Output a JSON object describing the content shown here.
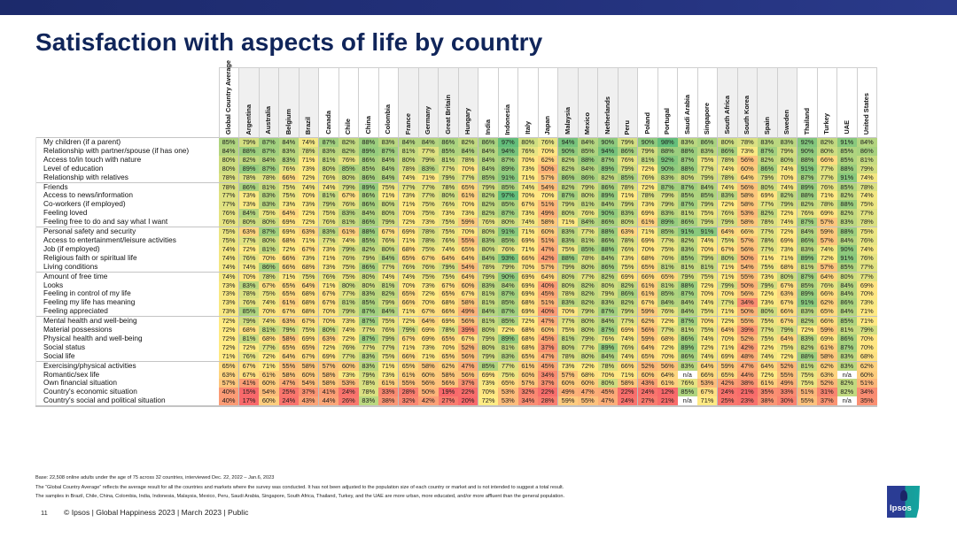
{
  "page": {
    "title": "Satisfaction with aspects of life by country",
    "footnote_base": "Base: 22,508 online adults under the age of 75 across 32 countries, interviewed Dec. 22, 2022 – Jan.6, 2023",
    "footnote_average": "The “Global Country Average” reflects the average result for all the countries and markets where the survey was conducted. It has not been adjusted to the population size of each country or market and is not intended to suggest a total result.",
    "footnote_samples": "The samples in Brazil, Chile, China, Colombia, India, Indonesia, Malaysia, Mexico, Peru, Saudi Arabia, Singapore, South Africa, Thailand, Turkey, and the UAE are more urban, more educated, and/or more affluent than the general population.",
    "page_number": "11",
    "footer": "© Ipsos | Global Happiness 2023 | March 2023 | Public",
    "logo_text": "Ipsos"
  },
  "chart_data": {
    "type": "heatmap",
    "title": "Satisfaction with aspects of life by country",
    "value_unit": "%",
    "color_scale": {
      "low": "#f8696b",
      "mid": "#ffeb84",
      "high": "#63be7b"
    },
    "columns": [
      "Global Country Average",
      "Argentina",
      "Australia",
      "Belgium",
      "Brazil",
      "Canada",
      "Chile",
      "China",
      "Colombia",
      "France",
      "Germany",
      "Great Britain",
      "Hungary",
      "India",
      "Indonesia",
      "Italy",
      "Japan",
      "Malaysia",
      "Mexico",
      "Netherlands",
      "Peru",
      "Poland",
      "Portugal",
      "Saudi Arabia",
      "Singapore",
      "South Africa",
      "South Korea",
      "Spain",
      "Sweden",
      "Thailand",
      "Turkey",
      "UAE",
      "United States"
    ],
    "column_group_starts": [
      1,
      5,
      9,
      13,
      17,
      21,
      25,
      29
    ],
    "row_group_starts": [
      5,
      10,
      15,
      20,
      25
    ],
    "rows": [
      {
        "label": "My children (if a parent)",
        "values": [
          85,
          79,
          87,
          84,
          74,
          87,
          82,
          88,
          83,
          84,
          84,
          86,
          82,
          86,
          97,
          80,
          76,
          94,
          84,
          90,
          79,
          90,
          98,
          83,
          86,
          80,
          78,
          83,
          83,
          92,
          82,
          91,
          84
        ]
      },
      {
        "label": "Relationship with partner/spouse (if has one)",
        "values": [
          84,
          88,
          87,
          83,
          78,
          83,
          82,
          89,
          87,
          81,
          77,
          85,
          84,
          84,
          94,
          76,
          70,
          90,
          85,
          94,
          86,
          79,
          88,
          88,
          83,
          86,
          73,
          87,
          79,
          90,
          80,
          85,
          86
        ]
      },
      {
        "label": "Access to/in touch with nature",
        "values": [
          80,
          82,
          84,
          83,
          71,
          81,
          76,
          86,
          84,
          80,
          79,
          81,
          78,
          84,
          87,
          70,
          62,
          82,
          88,
          87,
          76,
          81,
          92,
          87,
          75,
          78,
          56,
          82,
          80,
          88,
          66,
          85,
          81
        ]
      },
      {
        "label": "Level of education",
        "values": [
          80,
          89,
          87,
          76,
          73,
          80,
          85,
          85,
          84,
          78,
          83,
          77,
          70,
          84,
          89,
          73,
          50,
          82,
          84,
          89,
          79,
          72,
          90,
          88,
          77,
          74,
          60,
          86,
          74,
          91,
          77,
          88,
          79
        ]
      },
      {
        "label": "Relationship with relatives",
        "values": [
          78,
          78,
          78,
          66,
          72,
          76,
          80,
          86,
          84,
          74,
          71,
          79,
          77,
          85,
          91,
          71,
          57,
          86,
          86,
          82,
          85,
          76,
          83,
          80,
          79,
          78,
          64,
          79,
          70,
          87,
          77,
          91,
          74
        ]
      },
      {
        "label": "Friends",
        "values": [
          78,
          86,
          81,
          75,
          74,
          74,
          79,
          89,
          75,
          77,
          77,
          78,
          65,
          79,
          85,
          74,
          54,
          82,
          79,
          86,
          78,
          72,
          87,
          87,
          84,
          74,
          56,
          80,
          74,
          89,
          76,
          85,
          78
        ]
      },
      {
        "label": "Access to news/information",
        "values": [
          77,
          73,
          83,
          75,
          70,
          81,
          67,
          86,
          71,
          73,
          77,
          80,
          61,
          82,
          97,
          70,
          70,
          87,
          80,
          89,
          71,
          78,
          79,
          85,
          85,
          83,
          58,
          69,
          82,
          88,
          71,
          82,
          74
        ]
      },
      {
        "label": "Co-workers (if employed)",
        "values": [
          77,
          73,
          83,
          73,
          73,
          79,
          76,
          86,
          80,
          71,
          75,
          76,
          70,
          82,
          85,
          67,
          51,
          79,
          81,
          84,
          79,
          73,
          79,
          87,
          79,
          72,
          58,
          77,
          79,
          82,
          78,
          88,
          75
        ]
      },
      {
        "label": "Feeling loved",
        "values": [
          76,
          84,
          75,
          64,
          72,
          75,
          83,
          84,
          80,
          70,
          75,
          73,
          73,
          82,
          87,
          73,
          49,
          80,
          76,
          90,
          83,
          69,
          83,
          81,
          75,
          76,
          53,
          82,
          72,
          76,
          69,
          82,
          77
        ]
      },
      {
        "label": "Feeling free to do and say what I want",
        "values": [
          76,
          80,
          80,
          69,
          72,
          76,
          81,
          86,
          79,
          72,
          73,
          75,
          59,
          76,
          80,
          74,
          58,
          71,
          84,
          86,
          80,
          61,
          89,
          86,
          79,
          79,
          58,
          78,
          74,
          87,
          57,
          83,
          78
        ]
      },
      {
        "label": "Personal safety and security",
        "values": [
          75,
          63,
          87,
          69,
          63,
          83,
          61,
          88,
          67,
          69,
          78,
          75,
          70,
          80,
          91,
          71,
          60,
          83,
          77,
          88,
          63,
          71,
          85,
          91,
          91,
          64,
          66,
          77,
          72,
          84,
          59,
          88,
          75
        ]
      },
      {
        "label": "Access to entertainment/leisure activities",
        "values": [
          75,
          77,
          80,
          68,
          71,
          77,
          74,
          85,
          76,
          71,
          78,
          76,
          55,
          83,
          85,
          69,
          51,
          83,
          81,
          86,
          78,
          69,
          77,
          82,
          74,
          75,
          57,
          78,
          69,
          86,
          57,
          84,
          76
        ]
      },
      {
        "label": "Job (if employed)",
        "values": [
          74,
          72,
          81,
          72,
          67,
          73,
          79,
          82,
          80,
          68,
          75,
          74,
          65,
          80,
          76,
          71,
          47,
          75,
          85,
          88,
          76,
          70,
          75,
          83,
          70,
          67,
          56,
          77,
          73,
          83,
          74,
          90,
          74
        ]
      },
      {
        "label": "Religious faith or spiritual life",
        "values": [
          74,
          76,
          70,
          66,
          73,
          71,
          76,
          79,
          84,
          65,
          67,
          64,
          64,
          84,
          93,
          66,
          42,
          88,
          78,
          84,
          73,
          68,
          76,
          85,
          79,
          80,
          50,
          71,
          71,
          89,
          72,
          91,
          76
        ]
      },
      {
        "label": "Living conditions",
        "values": [
          74,
          74,
          86,
          66,
          68,
          73,
          75,
          86,
          77,
          76,
          76,
          79,
          54,
          78,
          79,
          70,
          57,
          79,
          80,
          86,
          75,
          65,
          81,
          81,
          81,
          71,
          54,
          75,
          68,
          81,
          57,
          85,
          77
        ]
      },
      {
        "label": "Amount of free time",
        "values": [
          74,
          70,
          78,
          71,
          75,
          76,
          75,
          80,
          74,
          74,
          75,
          75,
          64,
          79,
          90,
          69,
          64,
          80,
          77,
          82,
          69,
          66,
          65,
          79,
          75,
          71,
          55,
          73,
          80,
          87,
          64,
          80,
          77
        ]
      },
      {
        "label": "Looks",
        "values": [
          73,
          83,
          67,
          65,
          64,
          71,
          80,
          80,
          81,
          70,
          73,
          67,
          60,
          83,
          84,
          69,
          40,
          80,
          82,
          80,
          82,
          61,
          81,
          88,
          72,
          79,
          50,
          79,
          67,
          85,
          76,
          84,
          69
        ]
      },
      {
        "label": "Feeling in control of my life",
        "values": [
          73,
          78,
          75,
          65,
          68,
          67,
          77,
          83,
          82,
          65,
          72,
          65,
          67,
          81,
          87,
          69,
          45,
          78,
          82,
          79,
          86,
          61,
          85,
          87,
          70,
          70,
          56,
          72,
          63,
          89,
          66,
          84,
          70
        ]
      },
      {
        "label": "Feeling my life has meaning",
        "values": [
          73,
          76,
          74,
          61,
          68,
          67,
          81,
          85,
          79,
          66,
          70,
          68,
          58,
          81,
          85,
          68,
          51,
          83,
          82,
          83,
          82,
          67,
          84,
          84,
          74,
          77,
          34,
          73,
          67,
          91,
          62,
          86,
          73
        ]
      },
      {
        "label": "Feeling appreciated",
        "values": [
          73,
          85,
          70,
          67,
          68,
          70,
          79,
          87,
          84,
          71,
          67,
          66,
          49,
          84,
          87,
          69,
          40,
          70,
          79,
          87,
          79,
          59,
          76,
          84,
          75,
          71,
          50,
          80,
          66,
          83,
          65,
          84,
          71
        ]
      },
      {
        "label": "Mental health and well-being",
        "values": [
          72,
          79,
          74,
          63,
          67,
          70,
          73,
          87,
          75,
          72,
          64,
          69,
          56,
          81,
          85,
          72,
          47,
          77,
          80,
          84,
          77,
          62,
          72,
          87,
          70,
          72,
          55,
          75,
          67,
          82,
          66,
          85,
          71
        ]
      },
      {
        "label": "Material possessions",
        "values": [
          72,
          68,
          81,
          79,
          75,
          80,
          74,
          77,
          76,
          79,
          69,
          78,
          39,
          80,
          72,
          68,
          60,
          75,
          80,
          87,
          69,
          56,
          77,
          81,
          75,
          64,
          39,
          77,
          79,
          72,
          59,
          81,
          79
        ]
      },
      {
        "label": "Physical health and well-being",
        "values": [
          72,
          81,
          68,
          58,
          69,
          63,
          72,
          87,
          79,
          67,
          69,
          65,
          67,
          79,
          89,
          68,
          45,
          81,
          79,
          76,
          74,
          59,
          68,
          86,
          74,
          70,
          52,
          75,
          64,
          83,
          69,
          86,
          70
        ]
      },
      {
        "label": "Social status",
        "values": [
          72,
          72,
          77,
          65,
          65,
          72,
          76,
          77,
          77,
          71,
          73,
          70,
          52,
          80,
          81,
          68,
          37,
          80,
          77,
          89,
          76,
          64,
          72,
          89,
          72,
          71,
          42,
          72,
          75,
          82,
          61,
          87,
          70
        ]
      },
      {
        "label": "Social life",
        "values": [
          71,
          76,
          72,
          64,
          67,
          69,
          77,
          83,
          75,
          66,
          71,
          65,
          56,
          79,
          83,
          65,
          47,
          78,
          80,
          84,
          74,
          65,
          70,
          86,
          74,
          69,
          48,
          74,
          72,
          88,
          58,
          83,
          68
        ]
      },
      {
        "label": "Exercising/physical activities",
        "values": [
          65,
          67,
          71,
          55,
          58,
          57,
          60,
          83,
          71,
          65,
          58,
          62,
          47,
          85,
          77,
          61,
          45,
          73,
          72,
          78,
          66,
          52,
          56,
          83,
          64,
          59,
          47,
          64,
          52,
          81,
          62,
          83,
          62
        ]
      },
      {
        "label": "Romantic/sex life",
        "values": [
          63,
          67,
          61,
          58,
          60,
          58,
          73,
          79,
          73,
          61,
          60,
          58,
          56,
          69,
          75,
          60,
          34,
          57,
          68,
          70,
          71,
          60,
          64,
          null,
          66,
          65,
          44,
          72,
          55,
          75,
          63,
          null,
          60
        ]
      },
      {
        "label": "Own financial situation",
        "values": [
          57,
          41,
          60,
          47,
          54,
          58,
          53,
          78,
          61,
          55,
          56,
          56,
          37,
          73,
          65,
          57,
          37,
          60,
          60,
          80,
          58,
          43,
          61,
          76,
          53,
          42,
          38,
          61,
          49,
          75,
          52,
          82,
          51
        ]
      },
      {
        "label": "Country's economic situation",
        "values": [
          40,
          15,
          54,
          25,
          37,
          41,
          24,
          78,
          33,
          28,
          50,
          19,
          22,
          70,
          53,
          32,
          22,
          49,
          47,
          45,
          22,
          24,
          12,
          85,
          67,
          24,
          21,
          35,
          33,
          51,
          31,
          82,
          34
        ]
      },
      {
        "label": "Country's social and political situation",
        "values": [
          40,
          17,
          60,
          24,
          43,
          44,
          26,
          83,
          38,
          32,
          42,
          27,
          20,
          72,
          53,
          34,
          28,
          59,
          55,
          47,
          24,
          27,
          21,
          null,
          71,
          25,
          23,
          38,
          30,
          55,
          37,
          null,
          35
        ]
      }
    ],
    "missing_label": "n/a"
  }
}
